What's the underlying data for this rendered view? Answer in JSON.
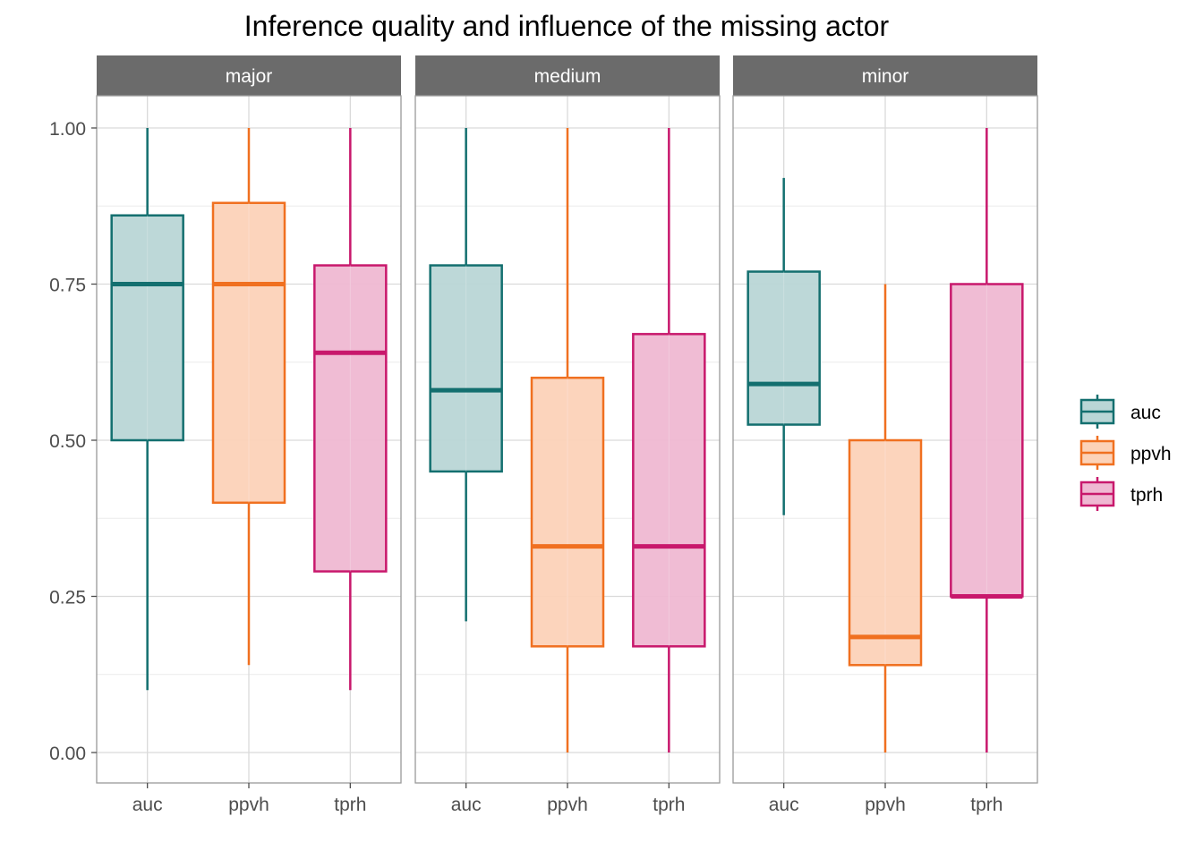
{
  "chart_data": {
    "type": "boxplot",
    "title": "Inference quality and influence of the missing actor",
    "xlabel": "",
    "ylabel": "",
    "ylim": [
      -0.05,
      1.05
    ],
    "y_ticks": [
      "0.00",
      "0.25",
      "0.50",
      "0.75",
      "1.00"
    ],
    "y_tick_values": [
      0,
      0.25,
      0.5,
      0.75,
      1.0
    ],
    "categories": [
      "auc",
      "ppvh",
      "tprh"
    ],
    "grid": true,
    "legend_position": "right",
    "series_styles": [
      {
        "name": "auc",
        "color": "#136f6f",
        "fill": "#b9d6d6"
      },
      {
        "name": "ppvh",
        "color": "#f07020",
        "fill": "#fcd2b8"
      },
      {
        "name": "tprh",
        "color": "#c8186c",
        "fill": "#efb8d2"
      }
    ],
    "panels": [
      {
        "facet": "major",
        "boxes": [
          {
            "category": "auc",
            "min": 0.1,
            "q1": 0.5,
            "median": 0.75,
            "q3": 0.86,
            "max": 1.0
          },
          {
            "category": "ppvh",
            "min": 0.14,
            "q1": 0.4,
            "median": 0.75,
            "q3": 0.88,
            "max": 1.0
          },
          {
            "category": "tprh",
            "min": 0.1,
            "q1": 0.29,
            "median": 0.64,
            "q3": 0.78,
            "max": 1.0
          }
        ]
      },
      {
        "facet": "medium",
        "boxes": [
          {
            "category": "auc",
            "min": 0.21,
            "q1": 0.45,
            "median": 0.58,
            "q3": 0.78,
            "max": 1.0
          },
          {
            "category": "ppvh",
            "min": 0.0,
            "q1": 0.17,
            "median": 0.33,
            "q3": 0.6,
            "max": 1.0
          },
          {
            "category": "tprh",
            "min": 0.0,
            "q1": 0.17,
            "median": 0.33,
            "q3": 0.67,
            "max": 1.0
          }
        ]
      },
      {
        "facet": "minor",
        "boxes": [
          {
            "category": "auc",
            "min": 0.38,
            "q1": 0.525,
            "median": 0.59,
            "q3": 0.77,
            "max": 0.92
          },
          {
            "category": "ppvh",
            "min": 0.0,
            "q1": 0.14,
            "median": 0.185,
            "q3": 0.5,
            "max": 0.75
          },
          {
            "category": "tprh",
            "min": 0.0,
            "q1": 0.25,
            "median": 0.25,
            "q3": 0.75,
            "max": 1.0
          }
        ]
      }
    ]
  }
}
